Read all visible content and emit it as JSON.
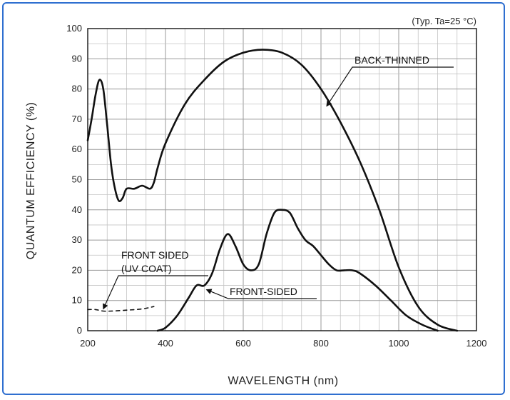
{
  "chart_data": {
    "type": "line",
    "condition": "(Typ. Ta=25 °C)",
    "xlabel": "WAVELENGTH (nm)",
    "ylabel": "QUANTUM EFFICIENCY (%)",
    "xlim": [
      200,
      1200
    ],
    "ylim": [
      0,
      100
    ],
    "x_ticks": [
      "200",
      "400",
      "600",
      "800",
      "1000",
      "1200"
    ],
    "y_ticks": [
      "0",
      "10",
      "20",
      "30",
      "40",
      "50",
      "60",
      "70",
      "80",
      "90",
      "100"
    ],
    "grid": true,
    "series": [
      {
        "name": "BACK-THINNED",
        "style": "solid",
        "points": [
          [
            200,
            63
          ],
          [
            210,
            70
          ],
          [
            220,
            78
          ],
          [
            230,
            83
          ],
          [
            240,
            80
          ],
          [
            250,
            68
          ],
          [
            260,
            55
          ],
          [
            270,
            47
          ],
          [
            280,
            43
          ],
          [
            290,
            44
          ],
          [
            300,
            47
          ],
          [
            320,
            47
          ],
          [
            340,
            48
          ],
          [
            360,
            47
          ],
          [
            370,
            49
          ],
          [
            380,
            54
          ],
          [
            400,
            62
          ],
          [
            450,
            75
          ],
          [
            500,
            83
          ],
          [
            550,
            89
          ],
          [
            600,
            92
          ],
          [
            650,
            93
          ],
          [
            700,
            92
          ],
          [
            750,
            88
          ],
          [
            800,
            80
          ],
          [
            850,
            69
          ],
          [
            900,
            56
          ],
          [
            950,
            40
          ],
          [
            1000,
            21
          ],
          [
            1050,
            8
          ],
          [
            1100,
            2
          ],
          [
            1150,
            0
          ]
        ]
      },
      {
        "name": "FRONT-SIDED",
        "style": "solid",
        "points": [
          [
            380,
            0
          ],
          [
            400,
            1
          ],
          [
            430,
            5
          ],
          [
            460,
            11
          ],
          [
            480,
            15
          ],
          [
            500,
            15
          ],
          [
            520,
            19
          ],
          [
            540,
            27
          ],
          [
            560,
            32
          ],
          [
            580,
            28
          ],
          [
            600,
            22
          ],
          [
            620,
            20
          ],
          [
            640,
            22
          ],
          [
            660,
            32
          ],
          [
            680,
            39
          ],
          [
            700,
            40
          ],
          [
            720,
            39
          ],
          [
            740,
            34
          ],
          [
            760,
            30
          ],
          [
            780,
            28
          ],
          [
            800,
            25
          ],
          [
            820,
            22
          ],
          [
            840,
            20
          ],
          [
            860,
            20
          ],
          [
            880,
            20
          ],
          [
            900,
            19
          ],
          [
            940,
            15
          ],
          [
            980,
            10
          ],
          [
            1020,
            5
          ],
          [
            1060,
            2
          ],
          [
            1100,
            0
          ]
        ]
      },
      {
        "name": "FRONT SIDED (UV COAT)",
        "style": "dashed",
        "points": [
          [
            200,
            7
          ],
          [
            220,
            7
          ],
          [
            240,
            6.5
          ],
          [
            260,
            6.5
          ],
          [
            300,
            6.8
          ],
          [
            340,
            7.2
          ],
          [
            370,
            8
          ]
        ]
      }
    ],
    "labels": {
      "back_thinned": "BACK-THINNED",
      "front_sided": "FRONT-SIDED",
      "uv_coat_line1": "FRONT SIDED",
      "uv_coat_line2": "(UV COAT)"
    }
  }
}
